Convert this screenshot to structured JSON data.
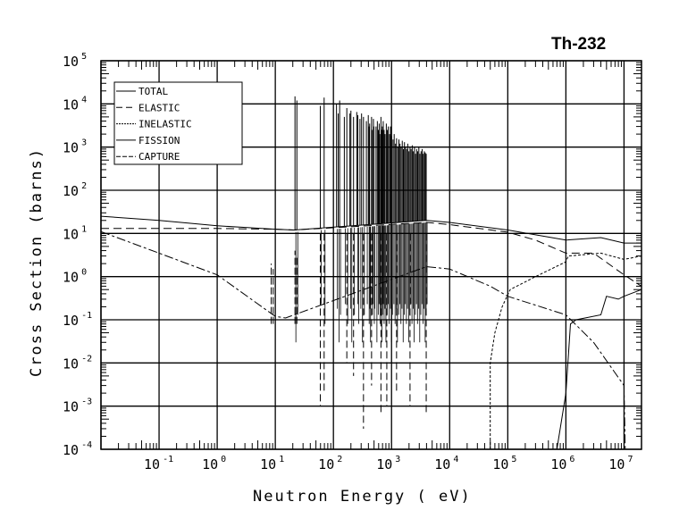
{
  "chart_data": {
    "type": "line",
    "title": "Th-232",
    "xlabel": "Neutron Energy ( eV)",
    "ylabel": "Cross Section (barns)",
    "xscale": "log",
    "yscale": "log",
    "xlim": [
      0.01,
      20000000
    ],
    "ylim": [
      0.0001,
      100000
    ],
    "x_ticks": [
      {
        "base": "10",
        "exp": "-1",
        "value": 0.1
      },
      {
        "base": "10",
        "exp": "0",
        "value": 1
      },
      {
        "base": "10",
        "exp": "1",
        "value": 10
      },
      {
        "base": "10",
        "exp": "2",
        "value": 100
      },
      {
        "base": "10",
        "exp": "3",
        "value": 1000
      },
      {
        "base": "10",
        "exp": "4",
        "value": 10000
      },
      {
        "base": "10",
        "exp": "5",
        "value": 100000
      },
      {
        "base": "10",
        "exp": "6",
        "value": 1000000
      },
      {
        "base": "10",
        "exp": "7",
        "value": 10000000
      }
    ],
    "y_ticks": [
      {
        "base": "10",
        "exp": "5",
        "value": 100000
      },
      {
        "base": "10",
        "exp": "4",
        "value": 10000
      },
      {
        "base": "10",
        "exp": "3",
        "value": 1000
      },
      {
        "base": "10",
        "exp": "2",
        "value": 100
      },
      {
        "base": "10",
        "exp": "1",
        "value": 10
      },
      {
        "base": "10",
        "exp": "0",
        "value": 1
      },
      {
        "base": "10",
        "exp": "-1",
        "value": 0.1
      },
      {
        "base": "10",
        "exp": "-2",
        "value": 0.01
      },
      {
        "base": "10",
        "exp": "-3",
        "value": 0.001
      },
      {
        "base": "10",
        "exp": "-4",
        "value": 0.0001
      }
    ],
    "grid": true,
    "legend_position": "top-left",
    "series": [
      {
        "name": "TOTAL",
        "style": "solid",
        "points": [
          [
            0.01,
            25
          ],
          [
            0.1,
            20
          ],
          [
            1,
            15
          ],
          [
            10,
            12.5
          ],
          [
            21,
            12
          ],
          [
            4000,
            20
          ],
          [
            10000,
            18
          ],
          [
            100000,
            12
          ],
          [
            1000000,
            7
          ],
          [
            4000000,
            8
          ],
          [
            10000000,
            6
          ],
          [
            20000000,
            6
          ]
        ]
      },
      {
        "name": "ELASTIC",
        "style": "dashed",
        "points": [
          [
            0.01,
            13
          ],
          [
            1,
            13
          ],
          [
            10,
            12.5
          ],
          [
            21,
            12
          ],
          [
            4000,
            18
          ],
          [
            10000,
            16
          ],
          [
            100000,
            10.7
          ],
          [
            300000,
            7
          ],
          [
            1000000,
            3.5
          ],
          [
            3000000,
            3.5
          ],
          [
            10000000,
            1.1
          ],
          [
            20000000,
            0.6
          ]
        ]
      },
      {
        "name": "INELASTIC",
        "style": "dotted",
        "points": [
          [
            50000,
            0.0001
          ],
          [
            50000,
            0.01
          ],
          [
            60000,
            0.05
          ],
          [
            80000,
            0.2
          ],
          [
            110000,
            0.5
          ],
          [
            300000,
            1
          ],
          [
            1000000,
            2.2
          ],
          [
            1100000,
            3
          ],
          [
            4000000,
            3.5
          ],
          [
            10000000,
            2.5
          ],
          [
            20000000,
            3
          ]
        ]
      },
      {
        "name": "FISSION",
        "style": "solid",
        "points": [
          [
            700000,
            0.0001
          ],
          [
            1000000,
            0.002
          ],
          [
            1200000,
            0.08
          ],
          [
            1500000,
            0.1
          ],
          [
            4000000,
            0.13
          ],
          [
            5000000,
            0.35
          ],
          [
            8000000,
            0.3
          ],
          [
            10000000,
            0.35
          ],
          [
            20000000,
            0.5
          ]
        ]
      },
      {
        "name": "CAPTURE",
        "style": "dash-dot",
        "points": [
          [
            0.01,
            11
          ],
          [
            0.1,
            3.5
          ],
          [
            1,
            1.1
          ],
          [
            10,
            0.12
          ],
          [
            15,
            0.11
          ],
          [
            4000,
            1.7
          ],
          [
            10000,
            1.5
          ],
          [
            50000,
            0.6
          ],
          [
            100000,
            0.35
          ],
          [
            1000000,
            0.13
          ],
          [
            3000000,
            0.03
          ],
          [
            10000000,
            0.003
          ],
          [
            10500000,
            0.0001
          ]
        ]
      }
    ],
    "resonances": {
      "energies_eV": [
        21.8,
        23.5,
        59.5,
        69.2,
        113,
        120.8,
        128,
        154,
        170,
        192,
        200,
        222,
        252,
        263,
        286,
        305,
        329,
        369,
        398,
        411,
        420,
        453,
        465,
        488,
        498,
        541,
        570,
        593,
        613,
        628,
        657,
        677,
        695,
        719,
        745,
        773,
        813,
        844,
        881,
        925,
        960,
        1000,
        1060,
        1110,
        1170,
        1220,
        1280,
        1340,
        1400,
        1460,
        1530,
        1600,
        1670,
        1740,
        1820,
        1900,
        1990,
        2080,
        2170,
        2270,
        2370,
        2480,
        2590,
        2700,
        2820,
        2950,
        3080,
        3220,
        3360,
        3510,
        3660,
        3800,
        3950
      ],
      "total_peak_barns": [
        15000,
        12000,
        9000,
        14000,
        10000,
        6000,
        12000,
        5000,
        8000,
        6000,
        7000,
        5000,
        6500,
        5500,
        4500,
        6000,
        5000,
        4000,
        5500,
        3000,
        3500,
        5000,
        2500,
        4500,
        3000,
        3000,
        4000,
        2500,
        3500,
        2000,
        5000,
        2500,
        3000,
        4000,
        2500,
        2000,
        3500,
        2500,
        3000,
        2000,
        3000,
        1800,
        1500,
        2000,
        1200,
        1600,
        1000,
        1500,
        1200,
        1000,
        1400,
        900,
        1300,
        1000,
        900,
        1200,
        800,
        1000,
        900,
        1100,
        800,
        1000,
        700,
        900,
        800,
        1000,
        700,
        800,
        900,
        700,
        800,
        750,
        700
      ],
      "elastic_dip_barns": [
        [
          59.5,
          0.001
        ],
        [
          69.2,
          0.002
        ],
        [
          170,
          0.01
        ],
        [
          222,
          0.005
        ],
        [
          329,
          0.0003
        ],
        [
          453,
          0.003
        ],
        [
          657,
          0.0006
        ],
        [
          829,
          0.001
        ],
        [
          1220,
          0.002
        ],
        [
          2080,
          0.001
        ],
        [
          3950,
          0.0006
        ]
      ],
      "capture_peak_barns": [
        [
          8.5,
          2
        ],
        [
          9.2,
          1.5
        ],
        [
          21.8,
          4
        ],
        [
          23.5,
          3
        ]
      ]
    }
  }
}
